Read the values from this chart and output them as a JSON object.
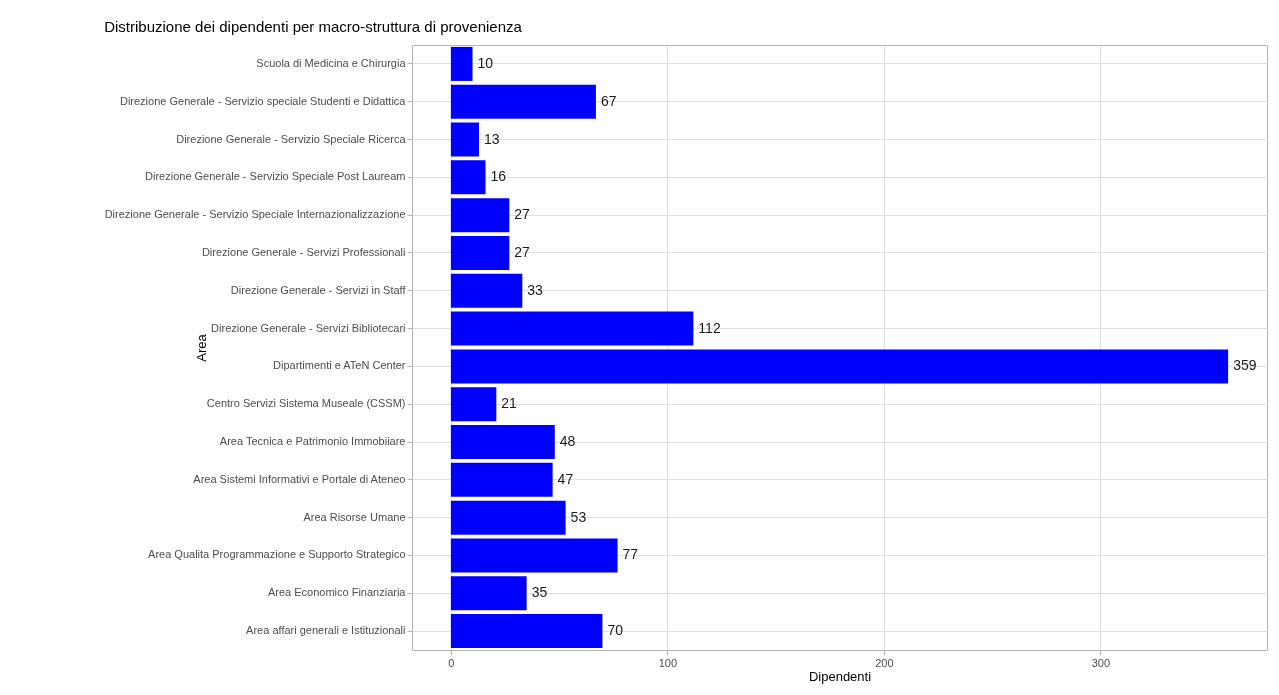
{
  "chart_data": {
    "type": "bar",
    "orientation": "horizontal",
    "title": "Distribuzione dei dipendenti per macro-struttura di provenienza",
    "xlabel": "Dipendenti",
    "ylabel": "Area",
    "categories": [
      "Scuola di Medicina e Chirurgia",
      "Direzione Generale - Servizio speciale Studenti e Didattica",
      "Direzione Generale - Servizio Speciale Ricerca",
      "Direzione Generale - Servizio Speciale Post Lauream",
      "Direzione Generale - Servizio Speciale Internazionalizzazione",
      "Direzione Generale - Servizi Professionali",
      "Direzione Generale - Servizi in Staff",
      "Direzione Generale - Servizi Bibliotecari",
      "Dipartimenti e ATeN Center",
      "Centro Servizi Sistema Museale (CSSM)",
      "Area Tecnica e Patrimonio Immobiiare",
      "Area Sistemi Informativi e Portale di Ateneo",
      "Area Risorse Umane",
      "Area Qualita Programmazione e Supporto Strategico",
      "Area Economico Finanziaria",
      "Area affari generali e Istituzionali"
    ],
    "values": [
      10,
      67,
      13,
      16,
      27,
      27,
      33,
      112,
      359,
      21,
      48,
      47,
      53,
      77,
      35,
      70
    ],
    "color": "#0000ff",
    "xlim": [
      -17.95,
      376.95
    ],
    "xticks": [
      0,
      100,
      200,
      300
    ],
    "grid": true,
    "data_labels": true
  }
}
